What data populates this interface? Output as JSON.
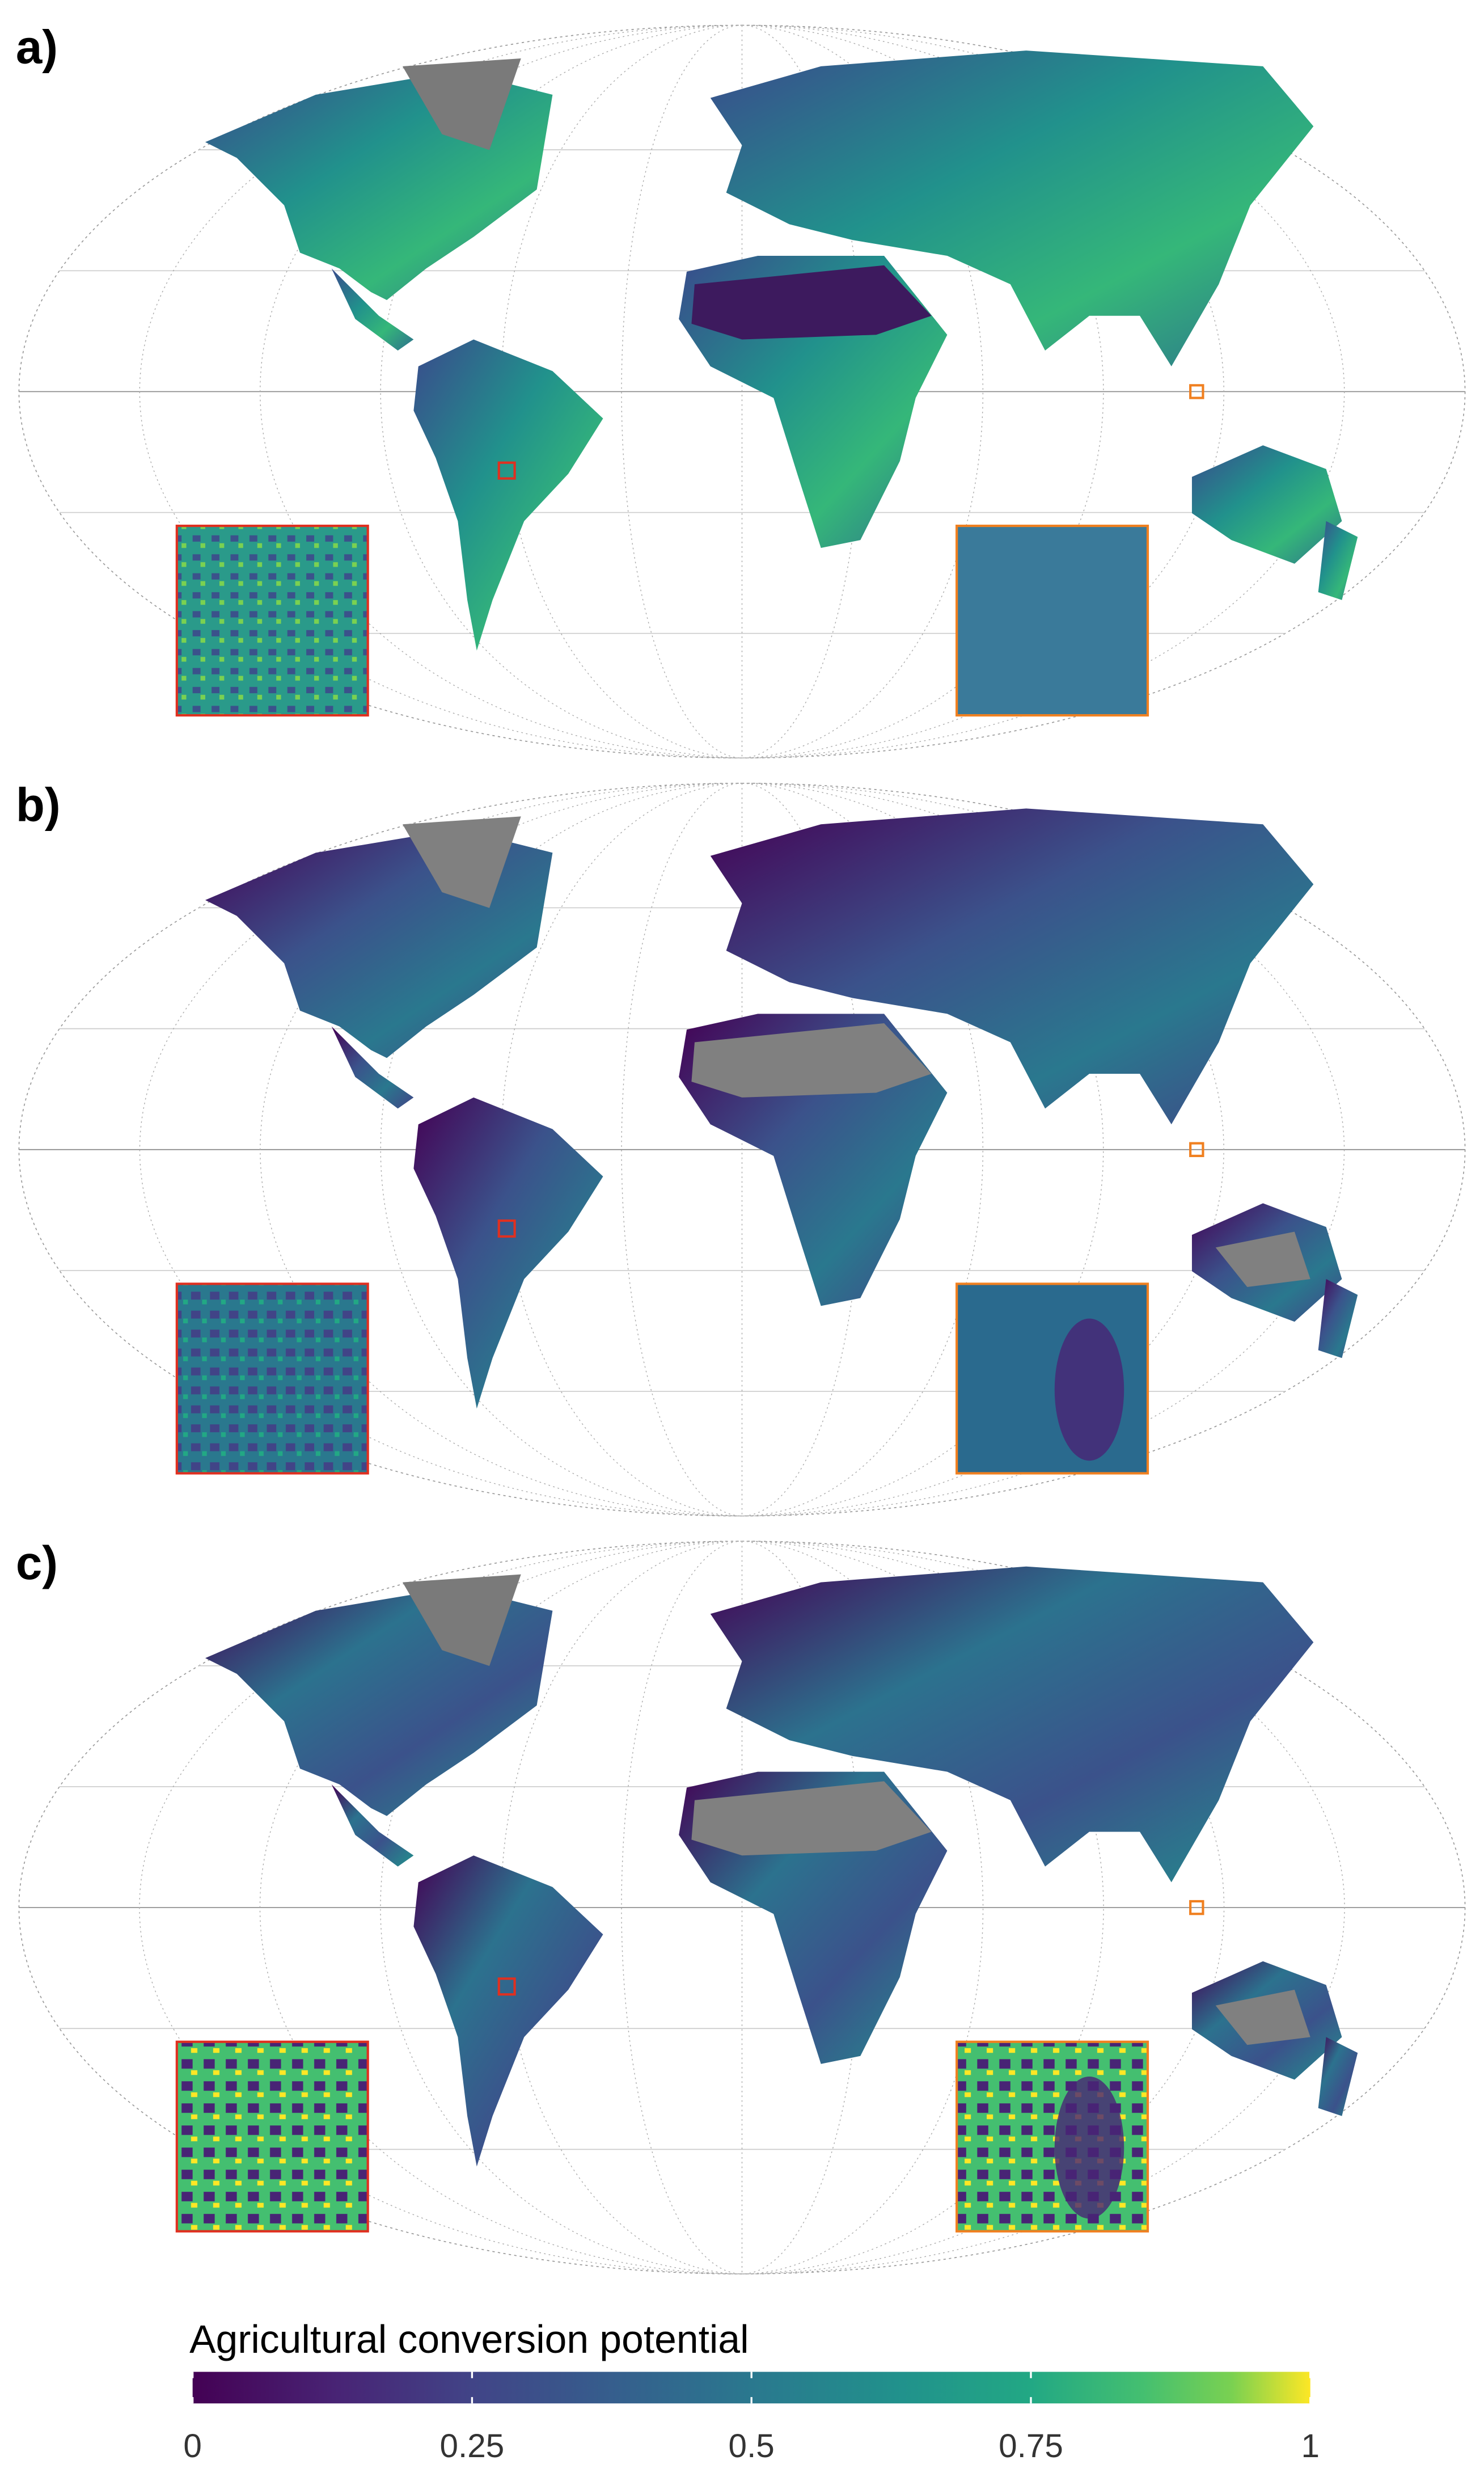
{
  "panels": [
    {
      "label": "a)"
    },
    {
      "label": "b)"
    },
    {
      "label": "c)"
    }
  ],
  "colorbar": {
    "title": "Agricultural conversion potential",
    "lim": [
      0,
      1
    ],
    "ticks": [
      0,
      0.25,
      0.5,
      0.75,
      1
    ]
  }
}
